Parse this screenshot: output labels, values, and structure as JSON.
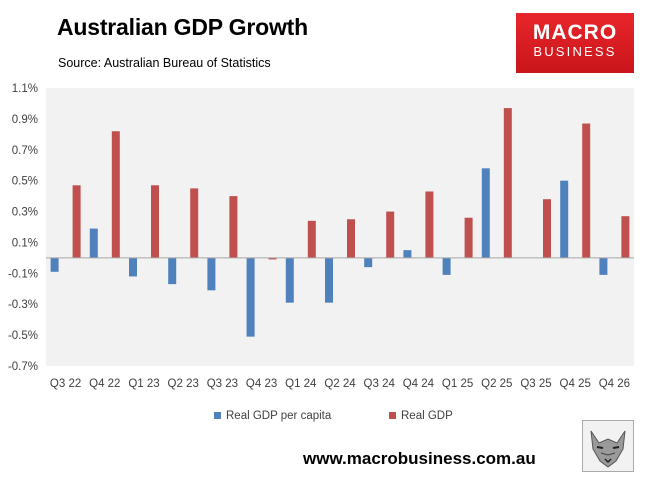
{
  "header": {
    "title": "Australian GDP Growth",
    "subtitle": "Source: Australian Bureau of Statistics"
  },
  "logo": {
    "line1": "MACRO",
    "line2": "BUSINESS"
  },
  "footer": {
    "url": "www.macrobusiness.com.au"
  },
  "colors": {
    "per_capita": "#4f81bd",
    "real_gdp": "#c0504d",
    "plot_bg": "#f2f2f2",
    "brand_red": "#e8262b"
  },
  "icons": {
    "brand_mascot": "wolf-icon"
  },
  "chart_data": {
    "type": "bar",
    "categories": [
      "Q3 22",
      "Q4 22",
      "Q1 23",
      "Q2 23",
      "Q3 23",
      "Q4 23",
      "Q1 24",
      "Q2 24",
      "Q3 24",
      "Q4 24",
      "Q1 25",
      "Q2 25",
      "Q3 25",
      "Q4 25",
      "Q4 26"
    ],
    "series": [
      {
        "name": "Real GDP per capita",
        "values": [
          -0.09,
          0.19,
          -0.12,
          -0.17,
          -0.21,
          -0.51,
          -0.29,
          -0.29,
          -0.06,
          0.05,
          -0.11,
          0.58,
          0.0,
          0.5,
          -0.11
        ]
      },
      {
        "name": "Real GDP",
        "values": [
          0.47,
          0.82,
          0.47,
          0.45,
          0.4,
          -0.01,
          0.24,
          0.25,
          0.3,
          0.43,
          0.26,
          0.97,
          0.38,
          0.87,
          0.27
        ]
      }
    ],
    "ylim": [
      -0.7,
      1.1
    ],
    "yticks": [
      -0.7,
      -0.5,
      -0.3,
      -0.1,
      0.1,
      0.3,
      0.5,
      0.7,
      0.9,
      1.1
    ],
    "ytick_labels": [
      "-0.7%",
      "-0.5%",
      "-0.3%",
      "-0.1%",
      "0.1%",
      "0.3%",
      "0.5%",
      "0.7%",
      "0.9%",
      "1.1%"
    ],
    "grid": false,
    "legend": "bottom"
  }
}
